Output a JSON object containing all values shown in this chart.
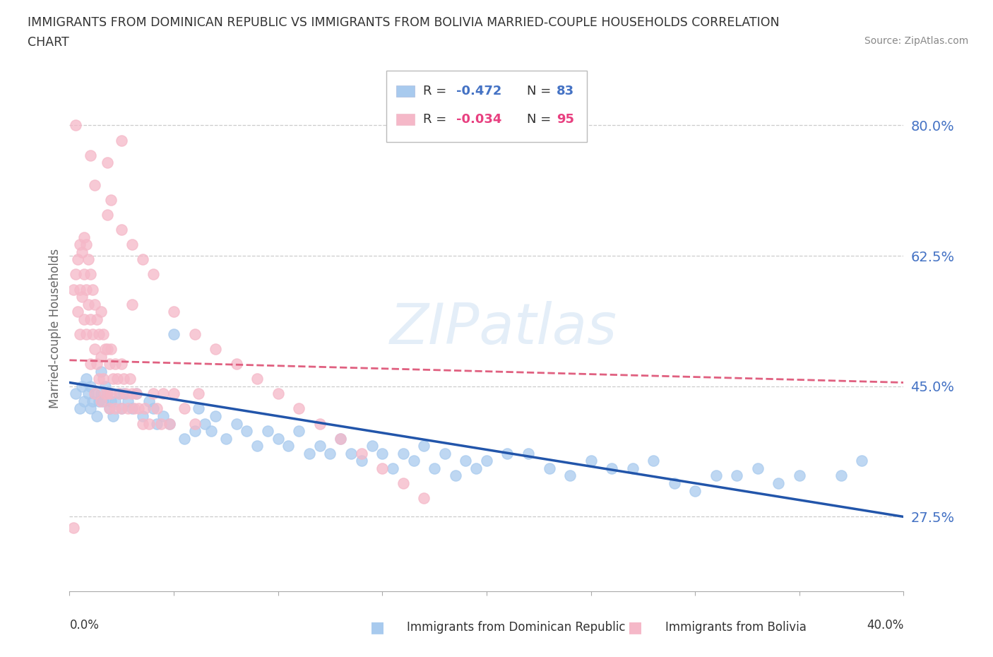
{
  "title_line1": "IMMIGRANTS FROM DOMINICAN REPUBLIC VS IMMIGRANTS FROM BOLIVIA MARRIED-COUPLE HOUSEHOLDS CORRELATION",
  "title_line2": "CHART",
  "source": "Source: ZipAtlas.com",
  "ylabel": "Married-couple Households",
  "ytick_labels": [
    "27.5%",
    "45.0%",
    "62.5%",
    "80.0%"
  ],
  "ytick_values": [
    0.275,
    0.45,
    0.625,
    0.8
  ],
  "xmin": 0.0,
  "xmax": 0.4,
  "ymin": 0.175,
  "ymax": 0.88,
  "legend_r1": "-0.472",
  "legend_n1": "83",
  "legend_r2": "-0.034",
  "legend_n2": "95",
  "color_blue_fill": "#A8CAEE",
  "color_pink_fill": "#F5B8C8",
  "color_blue_line": "#2255AA",
  "color_pink_line": "#E06080",
  "color_blue_label": "#4472C4",
  "color_pink_label": "#E84080",
  "watermark": "ZIPatlas",
  "blue_scatter_x": [
    0.003,
    0.005,
    0.006,
    0.007,
    0.008,
    0.009,
    0.01,
    0.01,
    0.011,
    0.012,
    0.013,
    0.014,
    0.015,
    0.015,
    0.016,
    0.017,
    0.018,
    0.019,
    0.02,
    0.021,
    0.022,
    0.024,
    0.025,
    0.026,
    0.028,
    0.03,
    0.032,
    0.035,
    0.038,
    0.04,
    0.042,
    0.045,
    0.048,
    0.05,
    0.055,
    0.06,
    0.062,
    0.065,
    0.068,
    0.07,
    0.075,
    0.08,
    0.085,
    0.09,
    0.095,
    0.1,
    0.105,
    0.11,
    0.115,
    0.12,
    0.125,
    0.13,
    0.135,
    0.14,
    0.145,
    0.15,
    0.155,
    0.16,
    0.165,
    0.17,
    0.175,
    0.18,
    0.185,
    0.19,
    0.195,
    0.2,
    0.21,
    0.22,
    0.23,
    0.24,
    0.25,
    0.26,
    0.27,
    0.28,
    0.29,
    0.3,
    0.31,
    0.32,
    0.33,
    0.34,
    0.35,
    0.37,
    0.38
  ],
  "blue_scatter_y": [
    0.44,
    0.42,
    0.45,
    0.43,
    0.46,
    0.44,
    0.45,
    0.42,
    0.43,
    0.44,
    0.41,
    0.43,
    0.47,
    0.44,
    0.43,
    0.45,
    0.44,
    0.42,
    0.43,
    0.41,
    0.43,
    0.44,
    0.42,
    0.44,
    0.43,
    0.42,
    0.44,
    0.41,
    0.43,
    0.42,
    0.4,
    0.41,
    0.4,
    0.52,
    0.38,
    0.39,
    0.42,
    0.4,
    0.39,
    0.41,
    0.38,
    0.4,
    0.39,
    0.37,
    0.39,
    0.38,
    0.37,
    0.39,
    0.36,
    0.37,
    0.36,
    0.38,
    0.36,
    0.35,
    0.37,
    0.36,
    0.34,
    0.36,
    0.35,
    0.37,
    0.34,
    0.36,
    0.33,
    0.35,
    0.34,
    0.35,
    0.36,
    0.36,
    0.34,
    0.33,
    0.35,
    0.34,
    0.34,
    0.35,
    0.32,
    0.31,
    0.33,
    0.33,
    0.34,
    0.32,
    0.33,
    0.33,
    0.35
  ],
  "pink_scatter_x": [
    0.002,
    0.003,
    0.004,
    0.004,
    0.005,
    0.005,
    0.005,
    0.006,
    0.006,
    0.007,
    0.007,
    0.007,
    0.008,
    0.008,
    0.008,
    0.009,
    0.009,
    0.01,
    0.01,
    0.01,
    0.011,
    0.011,
    0.012,
    0.012,
    0.012,
    0.013,
    0.013,
    0.014,
    0.014,
    0.015,
    0.015,
    0.015,
    0.016,
    0.016,
    0.017,
    0.017,
    0.018,
    0.018,
    0.019,
    0.019,
    0.02,
    0.02,
    0.021,
    0.022,
    0.022,
    0.023,
    0.024,
    0.025,
    0.025,
    0.026,
    0.027,
    0.028,
    0.029,
    0.03,
    0.031,
    0.032,
    0.033,
    0.035,
    0.036,
    0.038,
    0.04,
    0.042,
    0.044,
    0.045,
    0.048,
    0.05,
    0.055,
    0.06,
    0.062,
    0.012,
    0.018,
    0.02,
    0.025,
    0.03,
    0.035,
    0.04,
    0.05,
    0.06,
    0.07,
    0.08,
    0.09,
    0.1,
    0.11,
    0.12,
    0.13,
    0.14,
    0.15,
    0.16,
    0.17,
    0.018,
    0.025,
    0.003,
    0.01,
    0.03,
    0.002
  ],
  "pink_scatter_y": [
    0.58,
    0.6,
    0.62,
    0.55,
    0.64,
    0.58,
    0.52,
    0.63,
    0.57,
    0.65,
    0.6,
    0.54,
    0.64,
    0.58,
    0.52,
    0.62,
    0.56,
    0.6,
    0.54,
    0.48,
    0.58,
    0.52,
    0.56,
    0.5,
    0.44,
    0.54,
    0.48,
    0.52,
    0.46,
    0.55,
    0.49,
    0.43,
    0.52,
    0.46,
    0.5,
    0.44,
    0.5,
    0.44,
    0.48,
    0.42,
    0.5,
    0.44,
    0.46,
    0.48,
    0.42,
    0.46,
    0.44,
    0.48,
    0.42,
    0.46,
    0.44,
    0.42,
    0.46,
    0.44,
    0.42,
    0.44,
    0.42,
    0.4,
    0.42,
    0.4,
    0.44,
    0.42,
    0.4,
    0.44,
    0.4,
    0.44,
    0.42,
    0.4,
    0.44,
    0.72,
    0.68,
    0.7,
    0.66,
    0.64,
    0.62,
    0.6,
    0.55,
    0.52,
    0.5,
    0.48,
    0.46,
    0.44,
    0.42,
    0.4,
    0.38,
    0.36,
    0.34,
    0.32,
    0.3,
    0.75,
    0.78,
    0.8,
    0.76,
    0.56,
    0.26
  ]
}
